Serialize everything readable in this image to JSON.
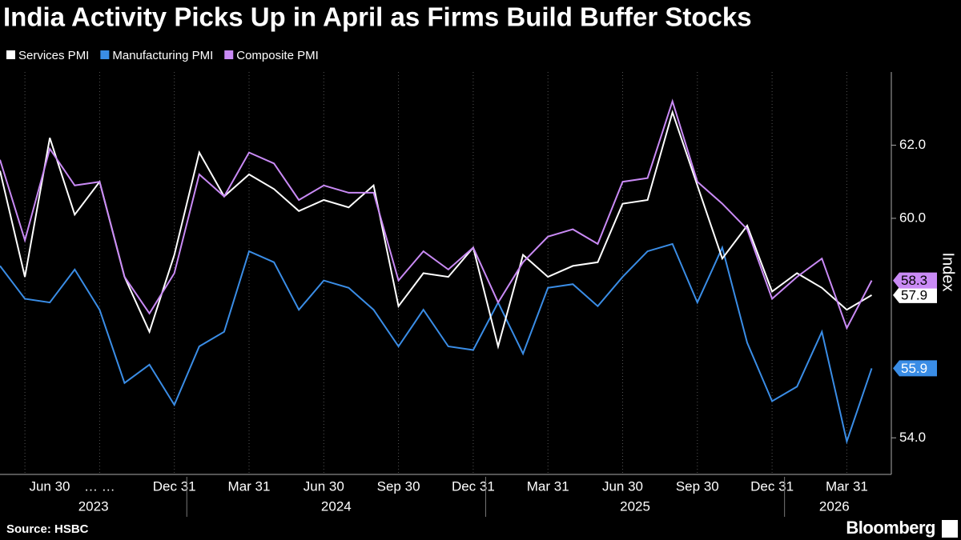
{
  "chart_data": {
    "type": "line",
    "title": "India Activity Picks Up in April as Firms Build Buffer Stocks",
    "y_axis_label": "Index",
    "source": "Source: HSBC",
    "brand": "Bloomberg",
    "categories": [
      null,
      "Jun 30",
      null,
      null,
      "… …",
      null,
      null,
      "Dec 31",
      null,
      null,
      "Mar 31",
      null,
      null,
      "Jun 30",
      null,
      null,
      "Sep 30",
      null,
      null,
      "Dec 31",
      null,
      null,
      "Mar 31",
      null,
      null,
      "Jun 30",
      null,
      null,
      "Sep 30",
      null,
      null,
      "Dec 31",
      null,
      null,
      "Mar 31",
      null
    ],
    "year_labels": [
      "2023",
      "2024",
      "2025",
      "2026"
    ],
    "ylim": [
      53,
      64
    ],
    "yticks": [
      {
        "value": 54,
        "label": "54.0"
      },
      {
        "value": 60,
        "label": "60.0"
      },
      {
        "value": 62,
        "label": "62.0"
      }
    ],
    "grid": true,
    "series": [
      {
        "name": "Services PMI",
        "color": "#ffffff",
        "values": [
          61.3,
          58.4,
          62.2,
          60.1,
          61.0,
          58.4,
          56.9,
          59.0,
          61.8,
          60.6,
          61.2,
          60.8,
          60.2,
          60.5,
          60.3,
          60.9,
          57.6,
          58.5,
          58.4,
          59.2,
          56.5,
          59.0,
          58.4,
          58.7,
          58.8,
          60.4,
          60.5,
          62.9,
          60.9,
          58.9,
          59.8,
          58.0,
          58.5,
          58.1,
          57.5,
          57.9
        ]
      },
      {
        "name": "Manufacturing PMI",
        "color": "#3a8de6",
        "values": [
          58.7,
          57.8,
          57.7,
          58.6,
          57.5,
          55.5,
          56.0,
          54.9,
          56.5,
          56.9,
          59.1,
          58.8,
          57.5,
          58.3,
          58.1,
          57.5,
          56.5,
          57.5,
          56.5,
          56.4,
          57.7,
          56.3,
          58.1,
          58.2,
          57.6,
          58.4,
          59.1,
          59.3,
          57.7,
          59.2,
          56.6,
          55.0,
          55.4,
          56.9,
          53.9,
          55.9
        ]
      },
      {
        "name": "Composite PMI",
        "color": "#c98af5",
        "values": [
          61.6,
          59.4,
          61.9,
          60.9,
          61.0,
          58.4,
          57.4,
          58.5,
          61.2,
          60.6,
          61.8,
          61.5,
          60.5,
          60.9,
          60.7,
          60.7,
          58.3,
          59.1,
          58.6,
          59.2,
          57.7,
          58.8,
          59.5,
          59.7,
          59.3,
          61.0,
          61.1,
          63.2,
          61.0,
          60.4,
          59.7,
          57.8,
          58.4,
          58.9,
          57.0,
          58.3
        ]
      }
    ]
  }
}
